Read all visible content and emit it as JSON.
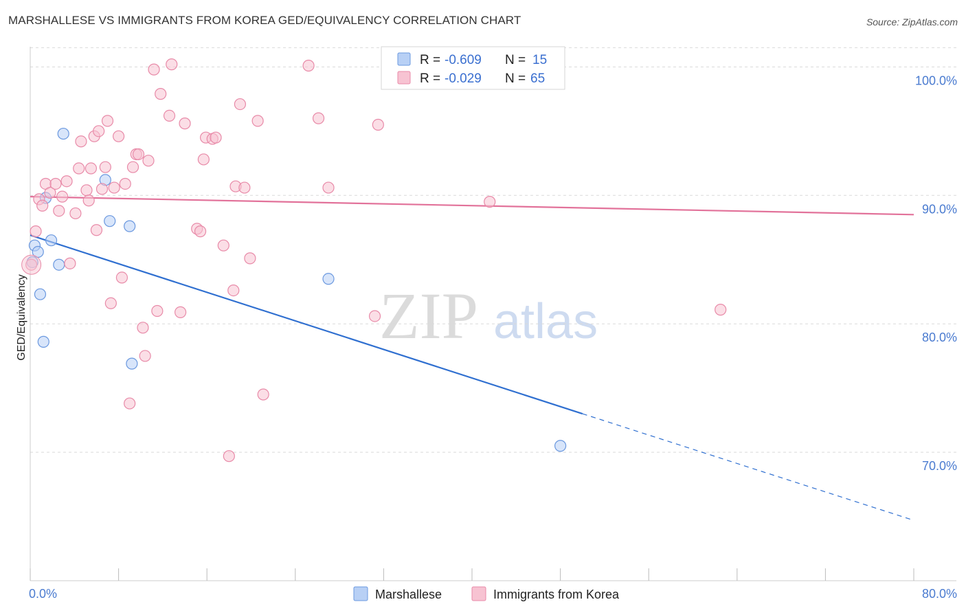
{
  "title": "MARSHALLESE VS IMMIGRANTS FROM KOREA GED/EQUIVALENCY CORRELATION CHART",
  "source": "Source: ZipAtlas.com",
  "watermark": {
    "zip": "ZIP",
    "atlas": "atlas"
  },
  "colors": {
    "blue_fill": "#b8d0f5",
    "blue_stroke": "#6a98df",
    "blue_line": "#2f6fd0",
    "pink_fill": "#f7c3d2",
    "pink_stroke": "#e88aa8",
    "pink_line": "#e2729a",
    "grid": "#d9d9d9",
    "axis_label": "#4a7bd0"
  },
  "legend": {
    "rows": [
      {
        "r_label": "R = ",
        "r_value": "-0.609",
        "n_label": "N = ",
        "n_value": "15"
      },
      {
        "r_label": "R = ",
        "r_value": "-0.029",
        "n_label": "N = ",
        "n_value": "65"
      }
    ]
  },
  "chart_data": {
    "type": "scatter",
    "ylabel": "GED/Equivalency",
    "xlim": [
      0,
      80
    ],
    "ylim": [
      60,
      102
    ],
    "x_tick_labels": [
      {
        "value": 0,
        "label": "0.0%"
      },
      {
        "value": 80,
        "label": "80.0%"
      }
    ],
    "y_tick_labels": [
      {
        "value": 70,
        "label": "70.0%"
      },
      {
        "value": 80,
        "label": "80.0%"
      },
      {
        "value": 90,
        "label": "90.0%"
      },
      {
        "value": 100,
        "label": "100.0%"
      }
    ],
    "grid": true,
    "legend_position": "top-center",
    "series": [
      {
        "name": "Marshallese",
        "color": "blue",
        "points": [
          [
            0.2,
            84.8
          ],
          [
            0.4,
            86.1
          ],
          [
            0.7,
            85.6
          ],
          [
            0.9,
            82.3
          ],
          [
            1.2,
            78.6
          ],
          [
            1.4,
            89.8
          ],
          [
            1.9,
            86.5
          ],
          [
            2.6,
            84.6
          ],
          [
            3.0,
            94.8
          ],
          [
            6.8,
            91.2
          ],
          [
            7.2,
            88.0
          ],
          [
            9.0,
            87.6
          ],
          [
            9.2,
            76.9
          ],
          [
            27.0,
            83.5
          ],
          [
            48.0,
            70.5
          ]
        ],
        "trend": {
          "x0": 0.0,
          "y0": 86.9,
          "x1": 50.0,
          "y1": 73.0,
          "dash_to_x": 80.0,
          "dash_to_y": 64.7
        }
      },
      {
        "name": "Immigrants from Korea",
        "color": "pink",
        "points": [
          [
            0.1,
            84.6
          ],
          [
            0.5,
            87.2
          ],
          [
            0.8,
            89.7
          ],
          [
            1.1,
            89.2
          ],
          [
            1.4,
            90.9
          ],
          [
            1.8,
            90.2
          ],
          [
            2.3,
            90.9
          ],
          [
            2.6,
            88.8
          ],
          [
            2.9,
            89.9
          ],
          [
            3.3,
            91.1
          ],
          [
            3.6,
            84.7
          ],
          [
            4.1,
            88.6
          ],
          [
            4.4,
            92.1
          ],
          [
            4.6,
            94.2
          ],
          [
            5.1,
            90.4
          ],
          [
            5.3,
            89.6
          ],
          [
            5.5,
            92.1
          ],
          [
            5.8,
            94.6
          ],
          [
            6.0,
            87.3
          ],
          [
            6.2,
            95.0
          ],
          [
            6.5,
            90.5
          ],
          [
            6.8,
            92.2
          ],
          [
            7.0,
            95.8
          ],
          [
            7.3,
            81.6
          ],
          [
            7.6,
            90.6
          ],
          [
            8.0,
            94.6
          ],
          [
            8.3,
            83.6
          ],
          [
            8.6,
            90.9
          ],
          [
            9.3,
            92.2
          ],
          [
            9.6,
            93.2
          ],
          [
            9.8,
            93.2
          ],
          [
            10.2,
            79.7
          ],
          [
            10.4,
            77.5
          ],
          [
            10.7,
            92.7
          ],
          [
            11.2,
            99.8
          ],
          [
            11.5,
            81.0
          ],
          [
            11.8,
            97.9
          ],
          [
            12.6,
            96.2
          ],
          [
            12.8,
            100.2
          ],
          [
            13.6,
            80.9
          ],
          [
            14.0,
            95.6
          ],
          [
            15.1,
            87.4
          ],
          [
            15.4,
            87.2
          ],
          [
            15.7,
            92.8
          ],
          [
            15.9,
            94.5
          ],
          [
            16.5,
            94.4
          ],
          [
            16.8,
            94.5
          ],
          [
            17.5,
            86.1
          ],
          [
            18.0,
            69.7
          ],
          [
            18.4,
            82.6
          ],
          [
            18.6,
            90.7
          ],
          [
            19.0,
            97.1
          ],
          [
            19.4,
            90.6
          ],
          [
            19.9,
            85.1
          ],
          [
            20.6,
            95.8
          ],
          [
            21.1,
            74.5
          ],
          [
            25.2,
            100.1
          ],
          [
            26.1,
            96.0
          ],
          [
            27.0,
            90.6
          ],
          [
            31.2,
            80.6
          ],
          [
            31.5,
            95.5
          ],
          [
            39.5,
            99.9
          ],
          [
            41.6,
            89.5
          ],
          [
            62.5,
            81.1
          ],
          [
            9.0,
            73.8
          ]
        ],
        "trend": {
          "x0": 0.0,
          "y0": 89.9,
          "x1": 80.0,
          "y1": 88.5
        }
      }
    ]
  }
}
